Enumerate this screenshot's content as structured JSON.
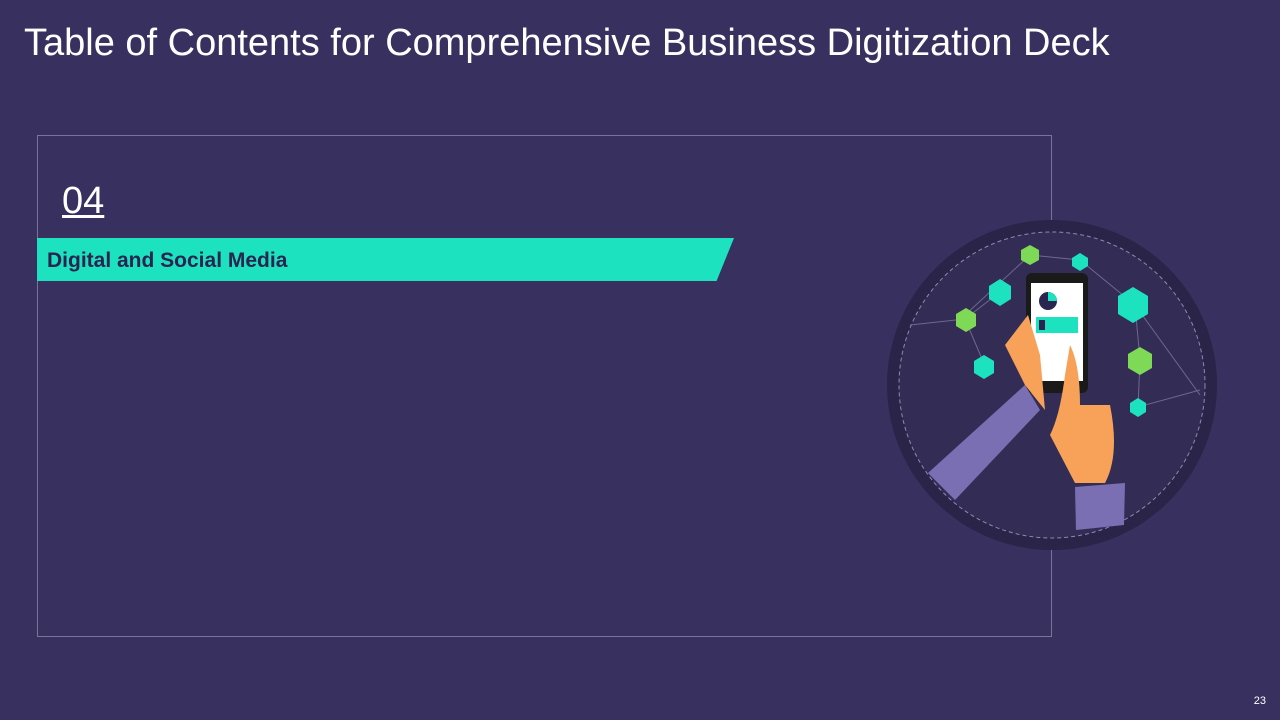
{
  "header": {
    "title": "Table of Contents for Comprehensive Business Digitization Deck"
  },
  "section": {
    "number": "04",
    "label": "Digital and Social Media"
  },
  "footer": {
    "page_number": "23"
  }
}
